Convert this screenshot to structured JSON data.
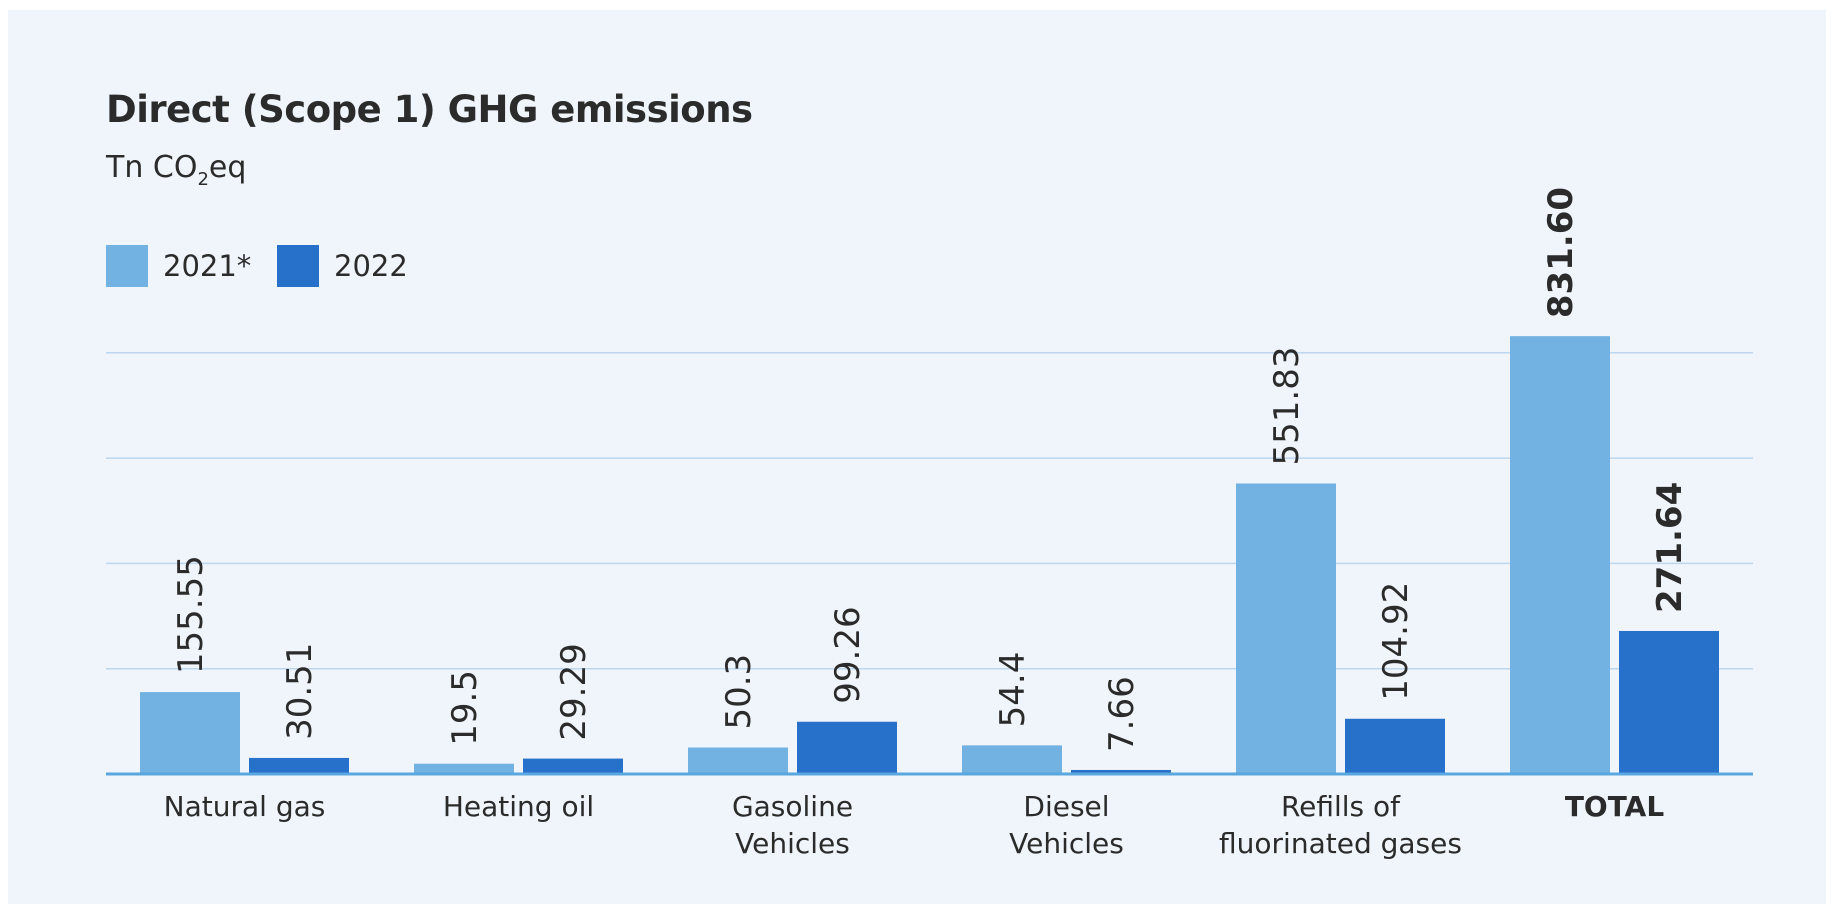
{
  "chart_data": {
    "type": "bar",
    "title": "Direct (Scope 1) GHG emissions",
    "subtitle_main": "Tn CO",
    "subtitle_sub": "2",
    "subtitle_tail": "eq",
    "categories": [
      [
        "Natural gas"
      ],
      [
        "Heating oil"
      ],
      [
        "Gasoline",
        "Vehicles"
      ],
      [
        "Diesel",
        "Vehicles"
      ],
      [
        "Refills of",
        "fluorinated gases"
      ],
      [
        "TOTAL"
      ]
    ],
    "bold_category_index": 5,
    "series": [
      {
        "name": "2021*",
        "color": "#72b2e2",
        "values": [
          155.55,
          19.5,
          50.3,
          54.4,
          551.83,
          831.6
        ],
        "labels": [
          "155.55",
          "19.5",
          "50.3",
          "54.4",
          "551.83",
          "831.60"
        ]
      },
      {
        "name": "2022",
        "color": "#2771cb",
        "values": [
          30.51,
          29.29,
          99.26,
          7.66,
          104.92,
          271.64
        ],
        "labels": [
          "30.51",
          "29.29",
          "99.26",
          "7.66",
          "104.92",
          "271.64"
        ]
      }
    ],
    "ylim": [
      0,
      800
    ],
    "gridlines": [
      200,
      400,
      600,
      800
    ],
    "grid": true,
    "legend": "top-left"
  }
}
